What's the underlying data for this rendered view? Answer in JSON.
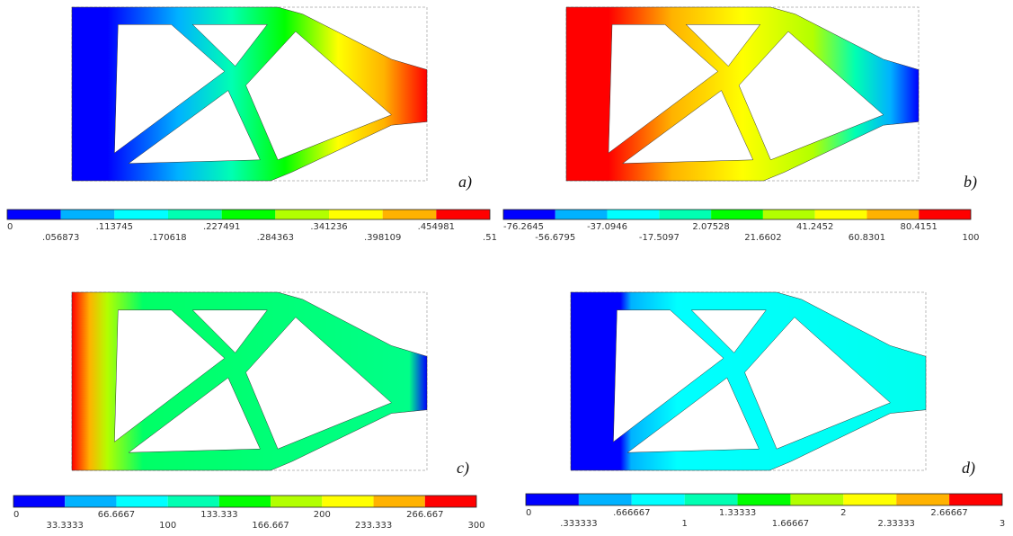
{
  "panels": [
    {
      "label": "a)",
      "ticks": [
        "0",
        ".056873",
        ".113745",
        ".170618",
        ".227491",
        ".284363",
        ".341236",
        ".398109",
        ".454981",
        ".51"
      ]
    },
    {
      "label": "b)",
      "ticks": [
        "-76.2645",
        "-56.6795",
        "-37.0946",
        "-17.5097",
        "2.07528",
        "21.6602",
        "41.2452",
        "60.8301",
        "80.4151",
        "100"
      ]
    },
    {
      "label": "c)",
      "ticks": [
        "0",
        "33.3333",
        "66.6667",
        "100",
        "133.333",
        "166.667",
        "200",
        "233.333",
        "266.667",
        "300"
      ]
    },
    {
      "label": "d)",
      "ticks": [
        "0",
        ".333333",
        ".666667",
        "1",
        "1.33333",
        "1.66667",
        "2",
        "2.33333",
        "2.66667",
        "3"
      ]
    }
  ]
}
